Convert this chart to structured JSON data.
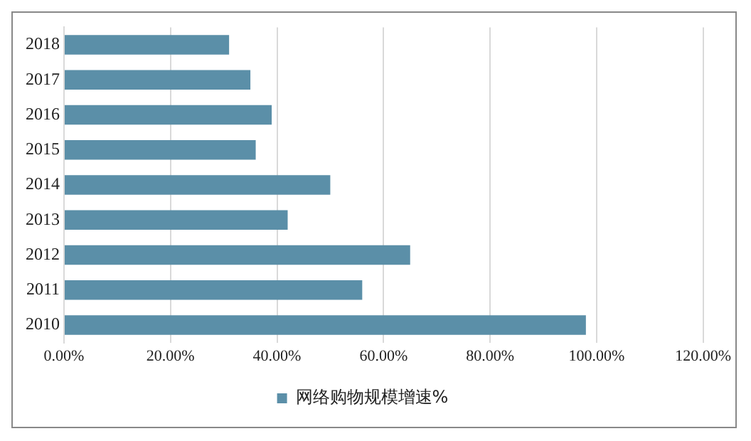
{
  "chart_data": {
    "type": "bar",
    "orientation": "horizontal",
    "categories": [
      "2018",
      "2017",
      "2016",
      "2015",
      "2014",
      "2013",
      "2012",
      "2011",
      "2010"
    ],
    "series": [
      {
        "name": "网络购物规模增速%",
        "color": "#5b8fa8",
        "values": [
          31,
          35,
          39,
          36,
          50,
          42,
          65,
          56,
          98
        ]
      }
    ],
    "xlim": [
      0,
      120
    ],
    "xticks": [
      {
        "value": 0,
        "label": "0.00%"
      },
      {
        "value": 20,
        "label": "20.00%"
      },
      {
        "value": 40,
        "label": "40.00%"
      },
      {
        "value": 60,
        "label": "60.00%"
      },
      {
        "value": 80,
        "label": "80.00%"
      },
      {
        "value": 100,
        "label": "100.00%"
      },
      {
        "value": 120,
        "label": "120.00%"
      }
    ],
    "grid": "x",
    "legend": "bottom"
  }
}
